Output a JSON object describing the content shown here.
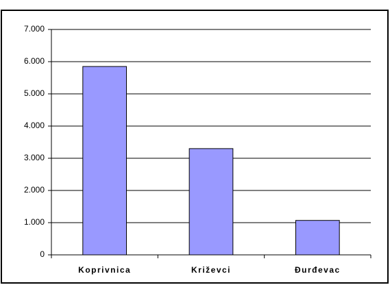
{
  "chart_data": {
    "type": "bar",
    "categories": [
      "Koprivnica",
      "Križevci",
      "Đurđevac"
    ],
    "values": [
      5850,
      3300,
      1070
    ],
    "color": "#9999ff",
    "ylim": [
      0,
      7000
    ],
    "yticks": [
      0,
      {
        "value": 1000,
        "label": "1.000"
      },
      {
        "value": 2000,
        "label": "2.000"
      },
      {
        "value": 3000,
        "label": "3.000"
      },
      {
        "value": 4000,
        "label": "4.000"
      },
      {
        "value": 5000,
        "label": "5.000"
      },
      {
        "value": 6000,
        "label": "6.000"
      },
      {
        "value": 7000,
        "label": "7.000"
      }
    ],
    "grid": true
  }
}
